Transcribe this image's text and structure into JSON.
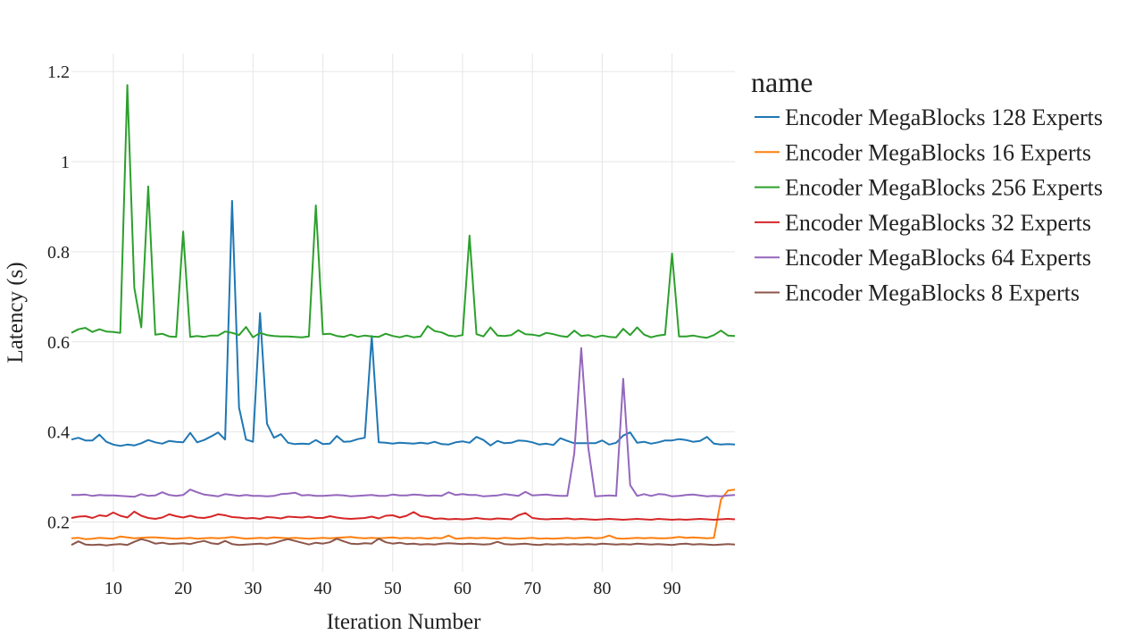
{
  "chart_data": {
    "type": "line",
    "xlabel": "Iteration Number",
    "ylabel": "Latency (s)",
    "xlim": [
      4,
      99
    ],
    "ylim": [
      0.09,
      1.24
    ],
    "xticks": [
      10,
      20,
      30,
      40,
      50,
      60,
      70,
      80,
      90
    ],
    "xtick_labels": [
      "10",
      "20",
      "30",
      "40",
      "50",
      "60",
      "70",
      "80",
      "90"
    ],
    "yticks": [
      0.2,
      0.4,
      0.6,
      0.8,
      1.0,
      1.2
    ],
    "ytick_labels": [
      "0.2",
      "0.4",
      "0.6",
      "0.8",
      "1",
      "1.2"
    ],
    "grid": true,
    "legend_title": "name",
    "legend_position": "right",
    "x_start": 4,
    "series": [
      {
        "name": "Encoder MegaBlocks 128 Experts",
        "color": "#1f77b4",
        "values": [
          0.383,
          0.387,
          0.381,
          0.381,
          0.394,
          0.378,
          0.372,
          0.369,
          0.372,
          0.37,
          0.375,
          0.382,
          0.377,
          0.374,
          0.38,
          0.378,
          0.377,
          0.398,
          0.377,
          0.382,
          0.39,
          0.399,
          0.383,
          0.913,
          0.454,
          0.383,
          0.378,
          0.664,
          0.418,
          0.387,
          0.395,
          0.376,
          0.373,
          0.374,
          0.373,
          0.382,
          0.373,
          0.374,
          0.391,
          0.378,
          0.379,
          0.384,
          0.387,
          0.613,
          0.377,
          0.376,
          0.374,
          0.376,
          0.375,
          0.374,
          0.376,
          0.374,
          0.378,
          0.373,
          0.372,
          0.377,
          0.379,
          0.376,
          0.389,
          0.382,
          0.37,
          0.38,
          0.375,
          0.376,
          0.381,
          0.38,
          0.377,
          0.372,
          0.374,
          0.371,
          0.386,
          0.38,
          0.375,
          0.375,
          0.375,
          0.375,
          0.381,
          0.372,
          0.376,
          0.392,
          0.399,
          0.376,
          0.378,
          0.374,
          0.377,
          0.381,
          0.381,
          0.384,
          0.382,
          0.378,
          0.38,
          0.389,
          0.374,
          0.372,
          0.373,
          0.372
        ]
      },
      {
        "name": "Encoder MegaBlocks 16 Experts",
        "color": "#ff7f0e",
        "values": [
          0.164,
          0.165,
          0.162,
          0.163,
          0.165,
          0.164,
          0.163,
          0.168,
          0.166,
          0.164,
          0.165,
          0.166,
          0.166,
          0.165,
          0.164,
          0.163,
          0.164,
          0.165,
          0.163,
          0.164,
          0.165,
          0.164,
          0.165,
          0.167,
          0.165,
          0.163,
          0.164,
          0.165,
          0.164,
          0.166,
          0.165,
          0.164,
          0.165,
          0.164,
          0.163,
          0.164,
          0.165,
          0.164,
          0.165,
          0.166,
          0.167,
          0.165,
          0.164,
          0.165,
          0.164,
          0.165,
          0.166,
          0.164,
          0.165,
          0.164,
          0.165,
          0.163,
          0.165,
          0.164,
          0.17,
          0.163,
          0.164,
          0.165,
          0.164,
          0.165,
          0.164,
          0.163,
          0.165,
          0.164,
          0.163,
          0.164,
          0.165,
          0.163,
          0.164,
          0.163,
          0.164,
          0.165,
          0.164,
          0.165,
          0.166,
          0.164,
          0.165,
          0.17,
          0.164,
          0.163,
          0.164,
          0.165,
          0.164,
          0.165,
          0.164,
          0.164,
          0.165,
          0.167,
          0.165,
          0.166,
          0.165,
          0.164,
          0.165,
          0.25,
          0.27,
          0.272
        ]
      },
      {
        "name": "Encoder MegaBlocks 256 Experts",
        "color": "#2ca02c",
        "values": [
          0.62,
          0.628,
          0.631,
          0.622,
          0.628,
          0.623,
          0.622,
          0.62,
          1.17,
          0.72,
          0.632,
          0.945,
          0.616,
          0.618,
          0.612,
          0.611,
          0.845,
          0.611,
          0.613,
          0.611,
          0.614,
          0.614,
          0.623,
          0.62,
          0.615,
          0.633,
          0.61,
          0.62,
          0.615,
          0.613,
          0.612,
          0.612,
          0.611,
          0.61,
          0.612,
          0.903,
          0.617,
          0.618,
          0.613,
          0.611,
          0.616,
          0.611,
          0.614,
          0.612,
          0.611,
          0.618,
          0.613,
          0.61,
          0.614,
          0.61,
          0.612,
          0.635,
          0.624,
          0.621,
          0.614,
          0.612,
          0.615,
          0.836,
          0.617,
          0.612,
          0.632,
          0.614,
          0.613,
          0.615,
          0.626,
          0.617,
          0.616,
          0.613,
          0.62,
          0.617,
          0.613,
          0.611,
          0.625,
          0.613,
          0.615,
          0.61,
          0.614,
          0.611,
          0.61,
          0.629,
          0.615,
          0.632,
          0.616,
          0.61,
          0.614,
          0.616,
          0.796,
          0.612,
          0.612,
          0.614,
          0.611,
          0.609,
          0.615,
          0.625,
          0.614,
          0.613
        ]
      },
      {
        "name": "Encoder MegaBlocks 32 Experts",
        "color": "#d62728",
        "values": [
          0.209,
          0.212,
          0.213,
          0.209,
          0.215,
          0.213,
          0.221,
          0.214,
          0.21,
          0.223,
          0.214,
          0.209,
          0.207,
          0.21,
          0.217,
          0.213,
          0.21,
          0.214,
          0.21,
          0.209,
          0.212,
          0.217,
          0.215,
          0.211,
          0.21,
          0.208,
          0.209,
          0.207,
          0.211,
          0.21,
          0.208,
          0.212,
          0.211,
          0.21,
          0.212,
          0.209,
          0.209,
          0.213,
          0.21,
          0.208,
          0.207,
          0.208,
          0.209,
          0.212,
          0.208,
          0.214,
          0.215,
          0.21,
          0.214,
          0.222,
          0.213,
          0.211,
          0.207,
          0.208,
          0.206,
          0.207,
          0.206,
          0.207,
          0.209,
          0.207,
          0.206,
          0.208,
          0.207,
          0.206,
          0.215,
          0.22,
          0.209,
          0.207,
          0.206,
          0.207,
          0.207,
          0.208,
          0.206,
          0.207,
          0.206,
          0.205,
          0.206,
          0.207,
          0.206,
          0.205,
          0.206,
          0.207,
          0.206,
          0.205,
          0.207,
          0.206,
          0.205,
          0.206,
          0.205,
          0.206,
          0.207,
          0.206,
          0.205,
          0.206,
          0.207,
          0.206
        ]
      },
      {
        "name": "Encoder MegaBlocks 64 Experts",
        "color": "#9467bd",
        "values": [
          0.26,
          0.26,
          0.261,
          0.258,
          0.26,
          0.259,
          0.259,
          0.258,
          0.257,
          0.256,
          0.262,
          0.258,
          0.259,
          0.266,
          0.26,
          0.258,
          0.26,
          0.272,
          0.266,
          0.261,
          0.259,
          0.257,
          0.262,
          0.26,
          0.258,
          0.26,
          0.258,
          0.258,
          0.257,
          0.258,
          0.262,
          0.263,
          0.265,
          0.259,
          0.26,
          0.258,
          0.258,
          0.259,
          0.26,
          0.259,
          0.257,
          0.258,
          0.259,
          0.26,
          0.258,
          0.258,
          0.261,
          0.259,
          0.259,
          0.261,
          0.26,
          0.258,
          0.259,
          0.258,
          0.266,
          0.26,
          0.262,
          0.26,
          0.26,
          0.257,
          0.258,
          0.259,
          0.262,
          0.26,
          0.258,
          0.267,
          0.259,
          0.26,
          0.261,
          0.259,
          0.258,
          0.258,
          0.352,
          0.586,
          0.365,
          0.257,
          0.258,
          0.259,
          0.258,
          0.518,
          0.282,
          0.258,
          0.262,
          0.258,
          0.262,
          0.261,
          0.257,
          0.258,
          0.26,
          0.261,
          0.259,
          0.257,
          0.258,
          0.257,
          0.259,
          0.26
        ]
      },
      {
        "name": "Encoder MegaBlocks 8 Experts",
        "color": "#8c564b",
        "values": [
          0.149,
          0.157,
          0.15,
          0.149,
          0.15,
          0.148,
          0.15,
          0.151,
          0.149,
          0.156,
          0.162,
          0.158,
          0.152,
          0.154,
          0.151,
          0.152,
          0.153,
          0.151,
          0.155,
          0.158,
          0.153,
          0.151,
          0.158,
          0.151,
          0.149,
          0.15,
          0.151,
          0.152,
          0.15,
          0.153,
          0.158,
          0.162,
          0.158,
          0.154,
          0.15,
          0.154,
          0.152,
          0.155,
          0.163,
          0.157,
          0.152,
          0.151,
          0.153,
          0.152,
          0.163,
          0.155,
          0.152,
          0.154,
          0.151,
          0.152,
          0.15,
          0.151,
          0.15,
          0.152,
          0.153,
          0.152,
          0.151,
          0.152,
          0.151,
          0.15,
          0.151,
          0.156,
          0.151,
          0.15,
          0.151,
          0.152,
          0.15,
          0.149,
          0.151,
          0.15,
          0.151,
          0.15,
          0.151,
          0.15,
          0.151,
          0.15,
          0.152,
          0.151,
          0.15,
          0.151,
          0.15,
          0.152,
          0.151,
          0.15,
          0.151,
          0.15,
          0.149,
          0.151,
          0.152,
          0.15,
          0.151,
          0.15,
          0.149,
          0.15,
          0.151,
          0.15
        ]
      }
    ]
  }
}
